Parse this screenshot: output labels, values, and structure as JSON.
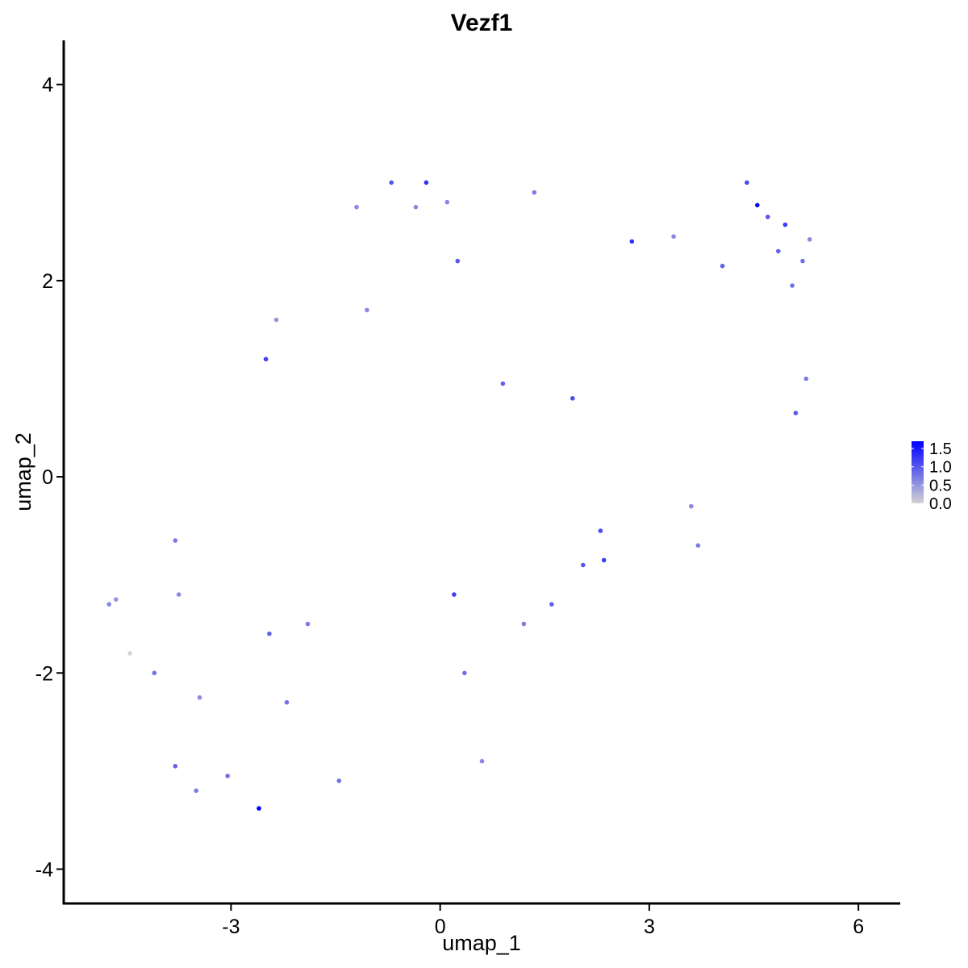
{
  "chart_data": {
    "type": "scatter",
    "title": "Vezf1",
    "xlabel": "umap_1",
    "ylabel": "umap_2",
    "xlim": [
      -5.4,
      6.6
    ],
    "ylim": [
      -4.35,
      4.45
    ],
    "xticks": [
      -3,
      0,
      3,
      6
    ],
    "yticks": [
      -4,
      -2,
      0,
      2,
      4
    ],
    "xtick_labels": [
      "-3",
      "0",
      "3",
      "6"
    ],
    "ytick_labels": [
      "-4",
      "-2",
      "0",
      "2",
      "4"
    ],
    "grid": false,
    "color_scale": {
      "low": "#d3d3d3",
      "high": "#0000ff",
      "min": 0,
      "max": 1.7,
      "ticks": [
        0.0,
        0.5,
        1.0,
        1.5
      ],
      "tick_labels": [
        "0.0",
        "0.5",
        "1.0",
        "1.5"
      ],
      "legend_position": "right"
    },
    "points": [
      {
        "x": -4.75,
        "y": -1.3,
        "v": 0.6
      },
      {
        "x": -4.65,
        "y": -1.25,
        "v": 0.5
      },
      {
        "x": -4.45,
        "y": -1.8,
        "v": 0.0
      },
      {
        "x": -4.1,
        "y": -2.0,
        "v": 0.8
      },
      {
        "x": -3.8,
        "y": -0.65,
        "v": 0.7
      },
      {
        "x": -3.8,
        "y": -2.95,
        "v": 0.9
      },
      {
        "x": -3.75,
        "y": -1.2,
        "v": 0.6
      },
      {
        "x": -3.5,
        "y": -3.2,
        "v": 0.7
      },
      {
        "x": -3.45,
        "y": -2.25,
        "v": 0.6
      },
      {
        "x": -3.05,
        "y": -3.05,
        "v": 0.8
      },
      {
        "x": -2.6,
        "y": -3.38,
        "v": 1.7
      },
      {
        "x": -2.5,
        "y": 1.2,
        "v": 1.2
      },
      {
        "x": -2.45,
        "y": -1.6,
        "v": 0.9
      },
      {
        "x": -2.35,
        "y": 1.6,
        "v": 0.5
      },
      {
        "x": -2.2,
        "y": -2.3,
        "v": 0.8
      },
      {
        "x": -1.9,
        "y": -1.5,
        "v": 0.7
      },
      {
        "x": -1.45,
        "y": -3.1,
        "v": 0.8
      },
      {
        "x": -1.2,
        "y": 2.75,
        "v": 0.6
      },
      {
        "x": -1.05,
        "y": 1.7,
        "v": 0.6
      },
      {
        "x": -0.7,
        "y": 3.0,
        "v": 1.0
      },
      {
        "x": -0.35,
        "y": 2.75,
        "v": 0.6
      },
      {
        "x": -0.2,
        "y": 3.0,
        "v": 1.3
      },
      {
        "x": 0.1,
        "y": 2.8,
        "v": 0.6
      },
      {
        "x": 0.25,
        "y": 2.2,
        "v": 1.0
      },
      {
        "x": 0.2,
        "y": -1.2,
        "v": 1.2
      },
      {
        "x": 0.35,
        "y": -2.0,
        "v": 0.8
      },
      {
        "x": 0.6,
        "y": -2.9,
        "v": 0.6
      },
      {
        "x": 0.9,
        "y": 0.95,
        "v": 0.9
      },
      {
        "x": 1.2,
        "y": -1.5,
        "v": 0.7
      },
      {
        "x": 1.35,
        "y": 2.9,
        "v": 0.7
      },
      {
        "x": 1.6,
        "y": -1.3,
        "v": 0.9
      },
      {
        "x": 1.9,
        "y": 0.8,
        "v": 1.1
      },
      {
        "x": 2.05,
        "y": -0.9,
        "v": 1.0
      },
      {
        "x": 2.3,
        "y": -0.55,
        "v": 1.1
      },
      {
        "x": 2.35,
        "y": -0.85,
        "v": 1.2
      },
      {
        "x": 2.75,
        "y": 2.4,
        "v": 1.3
      },
      {
        "x": 3.35,
        "y": 2.45,
        "v": 0.6
      },
      {
        "x": 3.6,
        "y": -0.3,
        "v": 0.6
      },
      {
        "x": 3.7,
        "y": -0.7,
        "v": 0.7
      },
      {
        "x": 4.05,
        "y": 2.15,
        "v": 0.9
      },
      {
        "x": 4.4,
        "y": 3.0,
        "v": 1.1
      },
      {
        "x": 4.55,
        "y": 2.77,
        "v": 1.6
      },
      {
        "x": 4.7,
        "y": 2.65,
        "v": 1.0
      },
      {
        "x": 4.85,
        "y": 2.3,
        "v": 0.9
      },
      {
        "x": 4.95,
        "y": 2.57,
        "v": 1.2
      },
      {
        "x": 5.05,
        "y": 1.95,
        "v": 0.8
      },
      {
        "x": 5.1,
        "y": 0.65,
        "v": 1.0
      },
      {
        "x": 5.2,
        "y": 2.2,
        "v": 0.8
      },
      {
        "x": 5.25,
        "y": 1.0,
        "v": 0.7
      },
      {
        "x": 5.3,
        "y": 2.42,
        "v": 0.6
      }
    ]
  }
}
